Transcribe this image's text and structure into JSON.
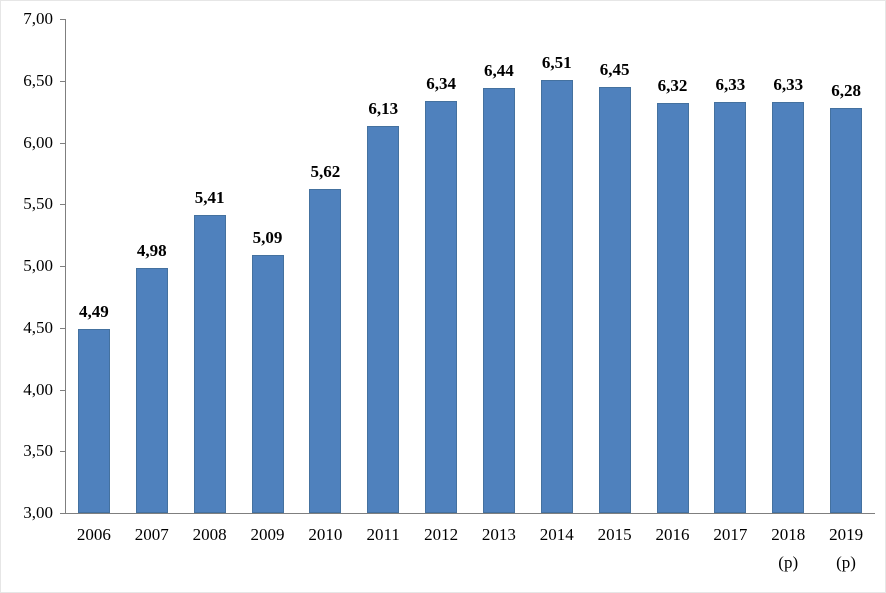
{
  "chart_data": {
    "type": "bar",
    "title": "",
    "xlabel": "",
    "ylabel": "",
    "categories": [
      "2006",
      "2007",
      "2008",
      "2009",
      "2010",
      "2011",
      "2012",
      "2013",
      "2014",
      "2015",
      "2016",
      "2017",
      "2018",
      "2019"
    ],
    "category_suffixes": [
      "",
      "",
      "",
      "",
      "",
      "",
      "",
      "",
      "",
      "",
      "",
      "",
      "(p)",
      "(p)"
    ],
    "values": [
      4.49,
      4.98,
      5.41,
      5.09,
      5.62,
      6.13,
      6.34,
      6.44,
      6.51,
      6.45,
      6.32,
      6.33,
      6.33,
      6.28
    ],
    "value_labels": [
      "4,49",
      "4,98",
      "5,41",
      "5,09",
      "5,62",
      "6,13",
      "6,34",
      "6,44",
      "6,51",
      "6,45",
      "6,32",
      "6,33",
      "6,33",
      "6,28"
    ],
    "ylim": [
      3.0,
      7.0
    ],
    "ytick_step": 0.5,
    "ytick_labels": [
      "7,00",
      "6,50",
      "6,00",
      "5,50",
      "5,00",
      "4,50",
      "4,00",
      "3,50",
      "3,00"
    ],
    "grid": false,
    "legend": "none",
    "bar_color": "#4f81bd",
    "bar_border_color": "#44719f",
    "axis_color": "#7f7f7f",
    "text_color": "#000000"
  }
}
